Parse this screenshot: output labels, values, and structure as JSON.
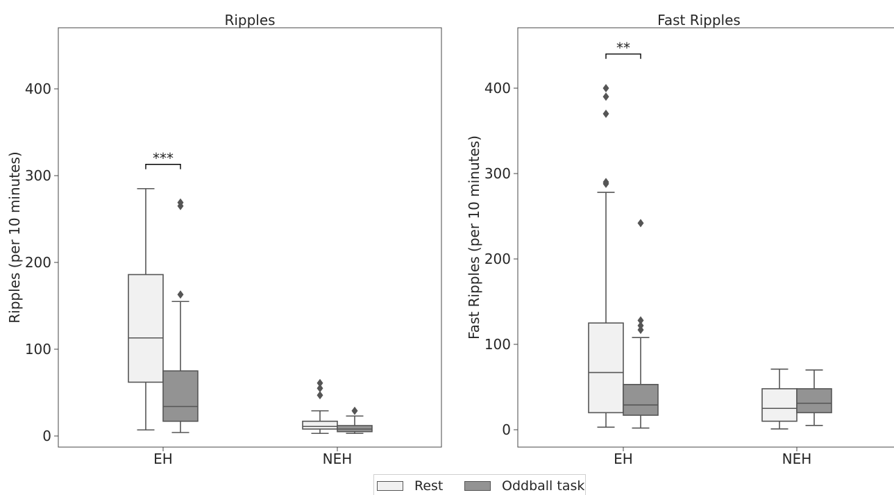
{
  "chart_data": [
    {
      "type": "box",
      "title": "Ripples",
      "ylabel": "Ripples (per 10 minutes)",
      "xlabel": "",
      "categories": [
        "EH",
        "NEH"
      ],
      "ylim": [
        -12,
        470
      ],
      "yticks": [
        0,
        100,
        200,
        300,
        400
      ],
      "series": [
        {
          "name": "Rest",
          "color": "#f1f1f1",
          "boxes": [
            {
              "whisker_low": 7,
              "q1": 62,
              "median": 113,
              "q3": 186,
              "whisker_high": 285,
              "outliers": []
            },
            {
              "whisker_low": 3,
              "q1": 8,
              "median": 11,
              "q3": 17,
              "whisker_high": 29,
              "outliers": [
                47,
                55,
                61
              ]
            }
          ]
        },
        {
          "name": "Oddball task",
          "color": "#939393",
          "boxes": [
            {
              "whisker_low": 4,
              "q1": 17,
              "median": 34,
              "q3": 75,
              "whisker_high": 155,
              "outliers": [
                163,
                265,
                269
              ]
            },
            {
              "whisker_low": 3,
              "q1": 5,
              "median": 8,
              "q3": 12,
              "whisker_high": 23,
              "outliers": [
                29
              ]
            }
          ]
        }
      ],
      "annotations": [
        {
          "category": "EH",
          "text": "***",
          "y": 313
        }
      ]
    },
    {
      "type": "box",
      "title": "Fast Ripples",
      "ylabel": "Fast Ripples (per 10 minutes)",
      "xlabel": "",
      "categories": [
        "EH",
        "NEH"
      ],
      "ylim": [
        -20,
        470
      ],
      "yticks": [
        0,
        100,
        200,
        300,
        400
      ],
      "series": [
        {
          "name": "Rest",
          "color": "#f1f1f1",
          "boxes": [
            {
              "whisker_low": 3,
              "q1": 20,
              "median": 67,
              "q3": 125,
              "whisker_high": 278,
              "outliers": [
                288,
                290,
                370,
                390,
                400
              ]
            },
            {
              "whisker_low": 1,
              "q1": 10,
              "median": 25,
              "q3": 48,
              "whisker_high": 71,
              "outliers": []
            }
          ]
        },
        {
          "name": "Oddball task",
          "color": "#939393",
          "boxes": [
            {
              "whisker_low": 2,
              "q1": 17,
              "median": 29,
              "q3": 53,
              "whisker_high": 108,
              "outliers": [
                117,
                122,
                128,
                242
              ]
            },
            {
              "whisker_low": 5,
              "q1": 20,
              "median": 31,
              "q3": 48,
              "whisker_high": 70,
              "outliers": []
            }
          ]
        }
      ],
      "annotations": [
        {
          "category": "EH",
          "text": "**",
          "y": 440
        }
      ]
    }
  ],
  "legend": {
    "items": [
      {
        "label": "Rest",
        "color": "#f1f1f1"
      },
      {
        "label": "Oddball task",
        "color": "#939393"
      }
    ]
  }
}
